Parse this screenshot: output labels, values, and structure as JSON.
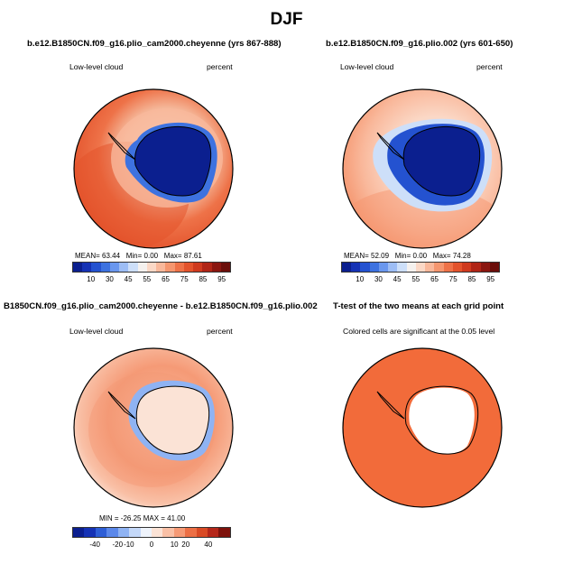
{
  "figure": {
    "title": "DJF"
  },
  "panels": {
    "p1": {
      "title": "b.e12.B1850CN.f09_g16.plio_cam2000.cheyenne (yrs 867-888)",
      "left_label": "Low-level cloud",
      "right_label": "percent",
      "stats": {
        "mean_label": "MEAN=",
        "mean": "63.44",
        "min_label": "Min=",
        "min": "0.00",
        "max_label": "Max=",
        "max": "87.61"
      }
    },
    "p2": {
      "title": "b.e12.B1850CN.f09_g16.plio.002 (yrs 601-650)",
      "left_label": "Low-level cloud",
      "right_label": "percent",
      "stats": {
        "mean_label": "MEAN=",
        "mean": "52.09",
        "min_label": "Min=",
        "min": "0.00",
        "max_label": "Max=",
        "max": "74.28"
      }
    },
    "p3": {
      "title": "B1850CN.f09_g16.plio_cam2000.cheyenne - b.e12.B1850CN.f09_g16.plio.002",
      "left_label": "Low-level cloud",
      "right_label": "percent",
      "stats_text": "MIN = -26.25 MAX =  41.00"
    },
    "p4": {
      "title": "T-test of the two means at each grid point",
      "subtitle": "Colored cells are significant at the 0.05 level"
    }
  },
  "chart_data": [
    {
      "type": "heatmap",
      "projection": "south-polar-stereographic",
      "title": "b.e12.B1850CN.f09_g16.plio_cam2000.cheyenne (yrs 867-888)",
      "variable": "Low-level cloud",
      "units": "percent",
      "statistics": {
        "mean": 63.44,
        "min": 0.0,
        "max": 87.61
      },
      "colorbar_levels": [
        5,
        10,
        20,
        30,
        40,
        45,
        50,
        55,
        60,
        65,
        70,
        75,
        80,
        85,
        90,
        95
      ],
      "colorbar_tick_labels": [
        "10",
        "30",
        "45",
        "55",
        "65",
        "75",
        "85",
        "95"
      ],
      "colorbar_colors": [
        "#0b1f8f",
        "#1532b5",
        "#2452d0",
        "#3d72e0",
        "#6a97ee",
        "#9dbdf5",
        "#cddff9",
        "#f5f1ee",
        "#fbd8c6",
        "#f9b89b",
        "#f5966f",
        "#ee7248",
        "#e3532c",
        "#cf3a1e",
        "#b02516",
        "#8a1610",
        "#6b0e0a"
      ],
      "fields": {
        "antarctic_interior": "0-10",
        "ocean": "70-85",
        "coastal_transition": "30-60"
      }
    },
    {
      "type": "heatmap",
      "projection": "south-polar-stereographic",
      "title": "b.e12.B1850CN.f09_g16.plio.002 (yrs 601-650)",
      "variable": "Low-level cloud",
      "units": "percent",
      "statistics": {
        "mean": 52.09,
        "min": 0.0,
        "max": 74.28
      },
      "colorbar_levels": [
        5,
        10,
        20,
        30,
        40,
        45,
        50,
        55,
        60,
        65,
        70,
        75,
        80,
        85,
        90,
        95
      ],
      "colorbar_tick_labels": [
        "10",
        "30",
        "45",
        "55",
        "65",
        "75",
        "85",
        "95"
      ],
      "colorbar_colors": [
        "#0b1f8f",
        "#1532b5",
        "#2452d0",
        "#3d72e0",
        "#6a97ee",
        "#9dbdf5",
        "#cddff9",
        "#f5f1ee",
        "#fbd8c6",
        "#f9b89b",
        "#f5966f",
        "#ee7248",
        "#e3532c",
        "#cf3a1e",
        "#b02516",
        "#8a1610",
        "#6b0e0a"
      ],
      "fields": {
        "antarctic_interior": "0-10",
        "ocean": "55-70",
        "coastal_transition": "20-55"
      }
    },
    {
      "type": "heatmap",
      "projection": "south-polar-stereographic",
      "title": "B1850CN.f09_g16.plio_cam2000.cheyenne - b.e12.B1850CN.f09_g16.plio.002",
      "variable": "Low-level cloud",
      "units": "percent",
      "statistics": {
        "min": -26.25,
        "max": 41.0
      },
      "colorbar_levels": [
        -50,
        -40,
        -30,
        -20,
        -10,
        -5,
        0,
        5,
        10,
        20,
        30,
        40,
        50
      ],
      "colorbar_tick_labels": [
        "-40",
        "-20",
        "-10",
        "0",
        "10",
        "20",
        "40"
      ],
      "colorbar_colors": [
        "#0b1f8f",
        "#1532b5",
        "#2e5ed6",
        "#5b88ea",
        "#8fb3f3",
        "#c4d8f8",
        "#eef3fb",
        "#fbe3d6",
        "#f9c0a6",
        "#f59a76",
        "#ec6f45",
        "#d94a25",
        "#b5271a",
        "#7e120c"
      ],
      "fields": {
        "antarctic_interior": "0-5",
        "ocean": "10-20",
        "ice_edge": "-10-0"
      }
    },
    {
      "type": "heatmap",
      "projection": "south-polar-stereographic",
      "title": "T-test of the two means at each grid point",
      "subtitle": "Colored cells are significant at the 0.05 level",
      "significance_level": 0.05,
      "significant_color": "#f26b3a",
      "fields": {
        "ocean": "significant",
        "antarctic_interior": "not significant"
      }
    }
  ]
}
